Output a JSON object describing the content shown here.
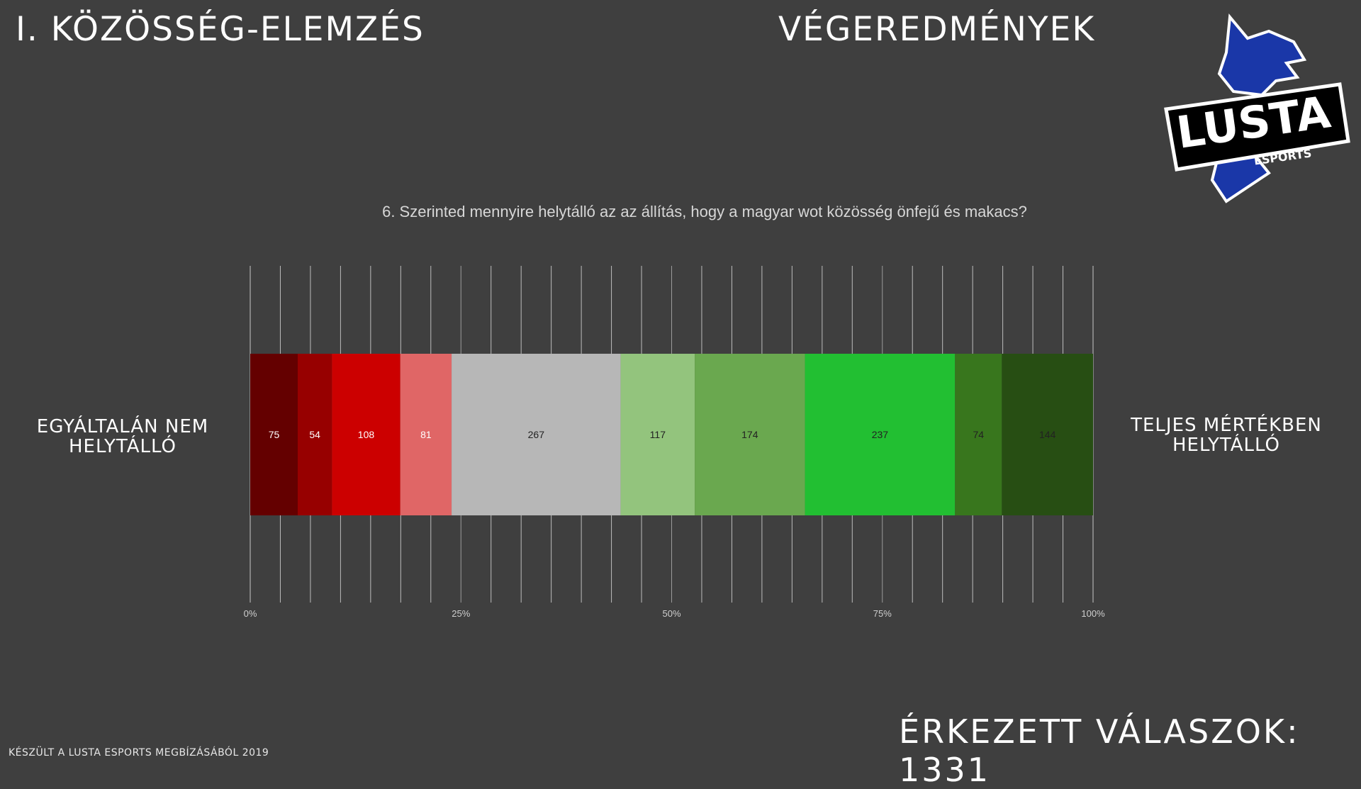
{
  "header": {
    "section_title": "I. KÖZÖSSÉG-ELEMZÉS",
    "results_title": "VÉGEREDMÉNYEK"
  },
  "logo": {
    "text": "LUSTA",
    "subtext": "ESPORTS",
    "icon": "wolf-head-icon",
    "color": "#1a37a8"
  },
  "question": "6. Szerinted mennyire helytálló az az állítás, hogy a magyar wot közösség önfejű és makacs?",
  "labels": {
    "left": "EGYÁLTALÁN NEM HELYTÁLLÓ",
    "right": "TELJES MÉRTÉKBEN HELYTÁLLÓ"
  },
  "chart_data": {
    "type": "bar",
    "orientation": "horizontal",
    "stacked": "percent",
    "title": "6. Szerinted mennyire helytálló az az állítás, hogy a magyar wot közösség önfejű és makacs?",
    "x_tick_labels": [
      "0%",
      "25%",
      "50%",
      "75%",
      "100%"
    ],
    "xlim": [
      0,
      100
    ],
    "grid": true,
    "series": [
      {
        "value": 75,
        "color": "#640000"
      },
      {
        "value": 54,
        "color": "#970000"
      },
      {
        "value": 108,
        "color": "#cc0000"
      },
      {
        "value": 81,
        "color": "#e06666"
      },
      {
        "value": 267,
        "color": "#b7b7b7"
      },
      {
        "value": 117,
        "color": "#93c47d"
      },
      {
        "value": 174,
        "color": "#6aa84f"
      },
      {
        "value": 237,
        "color": "#22bf32"
      },
      {
        "value": 74,
        "color": "#38761d"
      },
      {
        "value": 144,
        "color": "#274e13"
      }
    ]
  },
  "footer": {
    "credit": "KÉSZÜLT A LUSTA ESPORTS MEGBÍZÁSÁBÓL   2019",
    "responses": "ÉRKEZETT VÁLASZOK: 1331"
  }
}
